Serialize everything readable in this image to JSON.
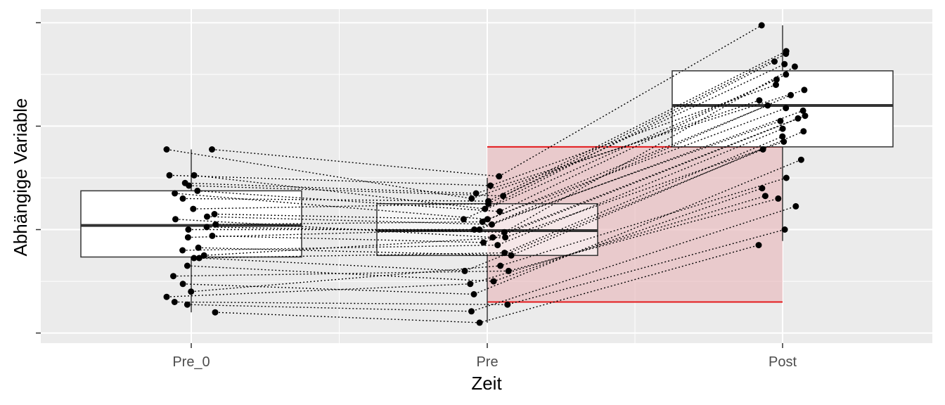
{
  "chart_data": {
    "type": "boxplot",
    "xlabel": "Zeit",
    "ylabel": "Abhängige Variable",
    "categories": [
      "Pre_0",
      "Pre",
      "Post"
    ],
    "ylim": [
      -0.1,
      5.95
    ],
    "grid": true,
    "y_tick_labels_shown": false,
    "point_connection_style": "dotted",
    "box_stats": [
      {
        "category": "Pre_0",
        "whisker_low": 0.4,
        "q1": 1.47,
        "median": 2.08,
        "q3": 2.75,
        "whisker_high": 3.55
      },
      {
        "category": "Pre",
        "whisker_low": 0.2,
        "q1": 1.5,
        "median": 1.98,
        "q3": 2.5,
        "whisker_high": 3.0
      },
      {
        "category": "Post",
        "whisker_low": 1.78,
        "q1": 3.6,
        "median": 4.4,
        "q3": 5.07,
        "whisker_high": 5.95
      }
    ],
    "highlight_region": {
      "x_from": "Pre",
      "x_to": "Post",
      "y_low": 0.6,
      "y_high": 3.6,
      "fill": "#e8b4b8",
      "stroke": "#e31a1c"
    },
    "subjects": [
      {
        "pre_0": 3.55,
        "pre": 2.6,
        "post": 4.5
      },
      {
        "pre_0": 3.55,
        "pre": 3.03,
        "post": 5.95
      },
      {
        "pre_0": 3.05,
        "pre": 2.85,
        "post": 4.8
      },
      {
        "pre_0": 3.05,
        "pre": 2.4,
        "post": 5.25
      },
      {
        "pre_0": 2.9,
        "pre": 2.7,
        "post": 4.7
      },
      {
        "pre_0": 2.85,
        "pre": 2.65,
        "post": 5.2
      },
      {
        "pre_0": 2.75,
        "pre": 2.35,
        "post": 5.0
      },
      {
        "pre_0": 2.7,
        "pre": 2.2,
        "post": 4.35
      },
      {
        "pre_0": 2.6,
        "pre": 2.55,
        "post": 5.45
      },
      {
        "pre_0": 2.4,
        "pre": 2.5,
        "post": 5.4
      },
      {
        "pre_0": 2.3,
        "pre": 2.2,
        "post": 4.9
      },
      {
        "pre_0": 2.25,
        "pre": 2.1,
        "post": 4.3
      },
      {
        "pre_0": 2.2,
        "pre": 1.85,
        "post": 4.15
      },
      {
        "pre_0": 2.1,
        "pre": 2.15,
        "post": 4.4
      },
      {
        "pre_0": 2.05,
        "pre": 1.95,
        "post": 5.15
      },
      {
        "pre_0": 2.0,
        "pre": 2.0,
        "post": 4.6
      },
      {
        "pre_0": 1.88,
        "pre": 1.75,
        "post": 4.2
      },
      {
        "pre_0": 1.85,
        "pre": 2.0,
        "post": 4.1
      },
      {
        "pre_0": 1.65,
        "pre": 1.5,
        "post": 3.9
      },
      {
        "pre_0": 1.6,
        "pre": 1.7,
        "post": 3.95
      },
      {
        "pre_0": 1.5,
        "pre": 1.85,
        "post": 3.7
      },
      {
        "pre_0": 1.45,
        "pre": 1.55,
        "post": 3.8
      },
      {
        "pre_0": 1.45,
        "pre": 1.2,
        "post": 3.55
      },
      {
        "pre_0": 1.3,
        "pre": 1.0,
        "post": 2.8
      },
      {
        "pre_0": 1.1,
        "pre": 1.2,
        "post": 2.6
      },
      {
        "pre_0": 0.95,
        "pre": 0.75,
        "post": 3.35
      },
      {
        "pre_0": 0.8,
        "pre": 1.3,
        "post": 3.0
      },
      {
        "pre_0": 0.7,
        "pre": 0.95,
        "post": 2.65
      },
      {
        "pre_0": 0.6,
        "pre": 0.55,
        "post": 2.0
      },
      {
        "pre_0": 0.55,
        "pre": 0.42,
        "post": 2.45
      },
      {
        "pre_0": 0.4,
        "pre": 0.2,
        "post": 1.7
      }
    ]
  }
}
